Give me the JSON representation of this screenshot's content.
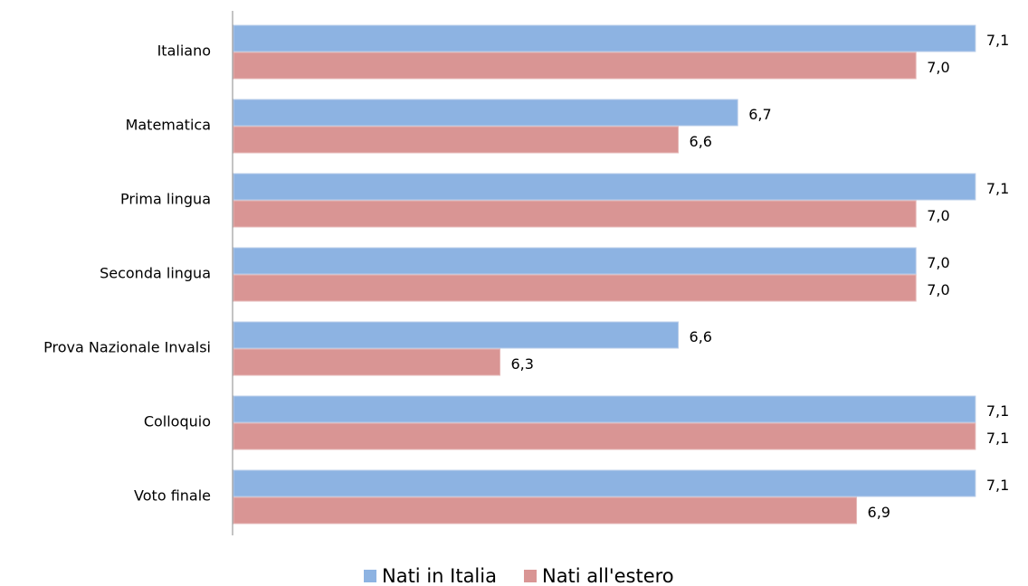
{
  "chart_data": {
    "type": "barh",
    "categories": [
      "Italiano",
      "Matematica",
      "Prima lingua",
      "Seconda lingua",
      "Prova Nazionale Invalsi",
      "Colloquio",
      "Voto finale"
    ],
    "series": [
      {
        "name": "Nati in Italia",
        "color": "#8db3e2",
        "values": [
          7.1,
          6.7,
          7.1,
          7.0,
          6.6,
          7.1,
          7.1
        ],
        "value_labels": [
          "7,1",
          "6,7",
          "7,1",
          "7,0",
          "6,6",
          "7,1",
          "7,1"
        ]
      },
      {
        "name": "Nati all'estero",
        "color": "#d99594",
        "values": [
          7.0,
          6.6,
          7.0,
          7.0,
          6.3,
          7.1,
          6.9
        ],
        "value_labels": [
          "7,0",
          "6,6",
          "7,0",
          "7,0",
          "6,3",
          "7,1",
          "6,9"
        ]
      }
    ],
    "xlim": [
      5.85,
      7.12
    ],
    "legend": "bottom"
  }
}
